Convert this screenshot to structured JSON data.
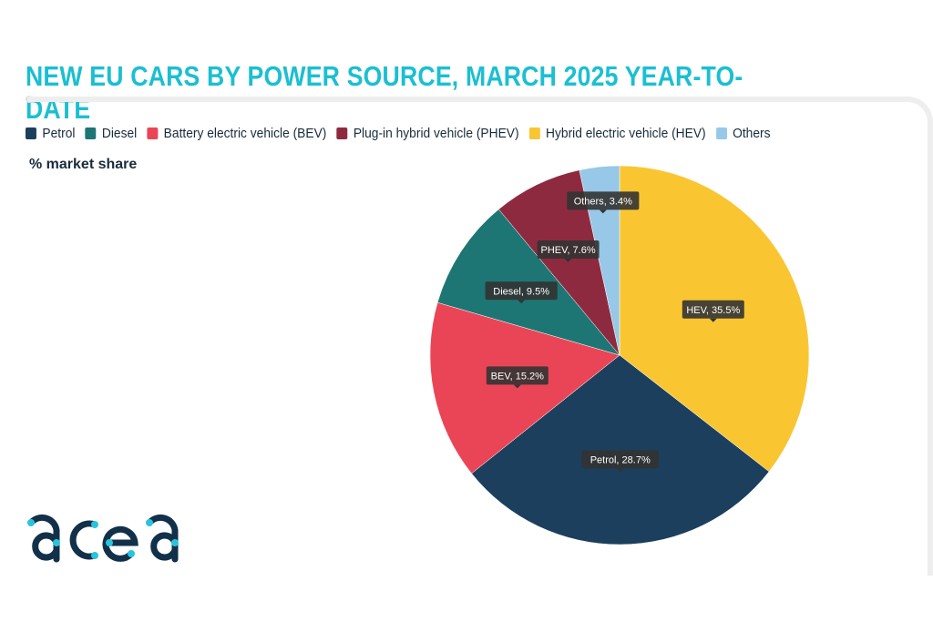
{
  "chart_data": {
    "type": "pie",
    "title": "NEW EU CARS BY POWER SOURCE, MARCH 2025 YEAR-TO-DATE",
    "unit_label": "% market share",
    "legend_position": "top-left",
    "slices": [
      {
        "name": "Hybrid electric vehicle (HEV)",
        "short": "HEV",
        "value": 35.5,
        "label": "HEV, 35.5%",
        "color": "#f9c632"
      },
      {
        "name": "Petrol",
        "short": "Petrol",
        "value": 28.7,
        "label": "Petrol, 28.7%",
        "color": "#1c3f5e"
      },
      {
        "name": "Battery electric vehicle (BEV)",
        "short": "BEV",
        "value": 15.2,
        "label": "BEV, 15.2%",
        "color": "#ea4556"
      },
      {
        "name": "Diesel",
        "short": "Diesel",
        "value": 9.5,
        "label": "Diesel, 9.5%",
        "color": "#1d7674"
      },
      {
        "name": "Plug-in hybrid vehicle (PHEV)",
        "short": "PHEV",
        "value": 7.6,
        "label": "PHEV, 7.6%",
        "color": "#8e2a3f"
      },
      {
        "name": "Others",
        "short": "Others",
        "value": 3.4,
        "label": "Others, 3.4%",
        "color": "#97c8e8"
      }
    ],
    "legend": [
      {
        "label": "Petrol",
        "color": "#1c3f5e"
      },
      {
        "label": "Diesel",
        "color": "#1d7674"
      },
      {
        "label": "Battery electric vehicle (BEV)",
        "color": "#ea4556"
      },
      {
        "label": "Plug-in hybrid vehicle (PHEV)",
        "color": "#8e2a3f"
      },
      {
        "label": "Hybrid electric vehicle (HEV)",
        "color": "#f9c632"
      },
      {
        "label": "Others",
        "color": "#97c8e8"
      }
    ]
  },
  "logo": {
    "text": "acea"
  }
}
